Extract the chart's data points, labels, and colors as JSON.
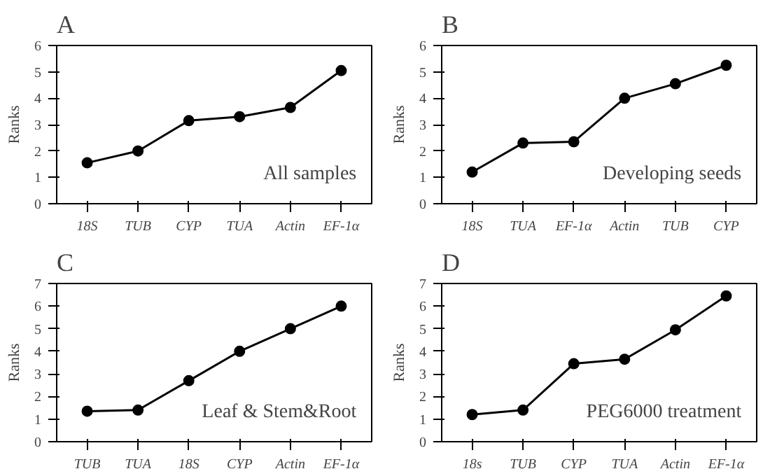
{
  "chart_data": [
    {
      "type": "line",
      "title": "A",
      "ylabel": "Ranks",
      "categories": [
        "18S",
        "TUB",
        "CYP",
        "TUA",
        "Actin",
        "EF-1α"
      ],
      "series": [
        {
          "color": "#000000",
          "values": [
            1.55,
            2.0,
            3.15,
            3.3,
            3.65,
            5.05
          ]
        }
      ],
      "ylim": [
        0,
        6
      ],
      "yticks": [
        0,
        1,
        2,
        3,
        4,
        5,
        6
      ],
      "marker": "circle",
      "annotations": [
        "All samples"
      ],
      "grid": false
    },
    {
      "type": "line",
      "title": "B",
      "ylabel": "Ranks",
      "categories": [
        "18S",
        "TUA",
        "EF-1α",
        "Actin",
        "TUB",
        "CYP"
      ],
      "series": [
        {
          "color": "#000000",
          "values": [
            1.2,
            2.3,
            2.35,
            4.0,
            4.55,
            5.25
          ]
        }
      ],
      "ylim": [
        0,
        6
      ],
      "yticks": [
        0,
        1,
        2,
        3,
        4,
        5,
        6
      ],
      "marker": "circle",
      "annotations": [
        "Developing seeds"
      ],
      "grid": false
    },
    {
      "type": "line",
      "title": "C",
      "ylabel": "Ranks",
      "categories": [
        "TUB",
        "TUA",
        "18S",
        "CYP",
        "Actin",
        "EF-1α"
      ],
      "series": [
        {
          "color": "#000000",
          "values": [
            1.35,
            1.4,
            2.7,
            4.0,
            5.0,
            6.0
          ]
        }
      ],
      "ylim": [
        0,
        7
      ],
      "yticks": [
        0,
        1,
        2,
        3,
        4,
        5,
        6,
        7
      ],
      "marker": "circle",
      "annotations": [
        "Leaf & Stem&Root"
      ],
      "grid": false
    },
    {
      "type": "line",
      "title": "D",
      "ylabel": "Ranks",
      "categories": [
        "18s",
        "TUB",
        "CYP",
        "TUA",
        "Actin",
        "EF-1α"
      ],
      "series": [
        {
          "color": "#000000",
          "values": [
            1.2,
            1.4,
            3.45,
            3.65,
            4.95,
            6.45
          ]
        }
      ],
      "ylim": [
        0,
        7
      ],
      "yticks": [
        0,
        1,
        2,
        3,
        4,
        5,
        6,
        7
      ],
      "marker": "circle",
      "annotations": [
        "PEG6000 treatment"
      ],
      "grid": false
    }
  ]
}
